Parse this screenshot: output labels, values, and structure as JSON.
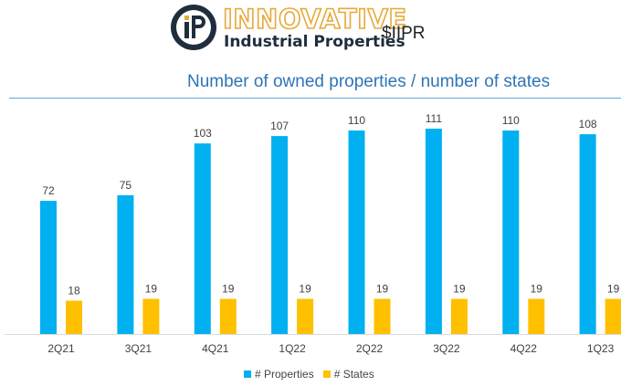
{
  "header": {
    "logo_word1": "INNOVATIVE",
    "logo_word2": "Industrial Properties",
    "ticker": "$IIPR"
  },
  "colors": {
    "properties": "#00b0f0",
    "states": "#ffc000",
    "title": "#2e75b6"
  },
  "chart_data": {
    "type": "bar",
    "title": "Number of owned properties / number of states",
    "categories": [
      "2Q21",
      "3Q21",
      "4Q21",
      "1Q22",
      "2Q22",
      "3Q22",
      "4Q22",
      "1Q23"
    ],
    "series": [
      {
        "name": "# Properties",
        "values": [
          72,
          75,
          103,
          107,
          110,
          111,
          110,
          108
        ]
      },
      {
        "name": "# States",
        "values": [
          18,
          19,
          19,
          19,
          19,
          19,
          19,
          19
        ]
      }
    ],
    "ylim": [
      0,
      120
    ],
    "grid": false,
    "legend": "bottom-center",
    "xlabel": "",
    "ylabel": ""
  }
}
